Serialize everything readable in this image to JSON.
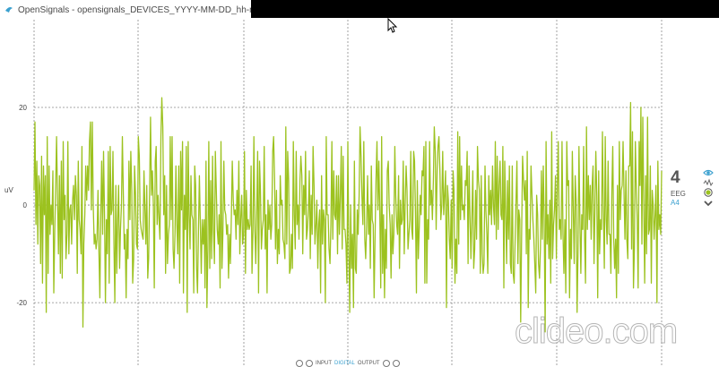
{
  "window": {
    "title": "OpenSignals - opensignals_DEVICES_YYYY-MM-DD_hh-mm-ss*"
  },
  "chart_data": {
    "type": "line",
    "ylabel": "uV",
    "y_ticks": [
      "20",
      "0",
      "-20"
    ],
    "ylim": [
      -33,
      42
    ],
    "grid": true,
    "series": [
      {
        "color": "#9cc21f",
        "values": [
          3,
          17,
          -4,
          9,
          -8,
          6,
          4,
          -12,
          10,
          -16,
          8,
          -2,
          6,
          -22,
          14,
          -14,
          8,
          -6,
          0,
          -4,
          7,
          -18,
          -5,
          4,
          14,
          1,
          -10,
          6,
          -14,
          9,
          -15,
          13,
          -3,
          2,
          -11,
          -6,
          13,
          -10,
          -1,
          0,
          -8,
          1,
          4,
          -3,
          6,
          2,
          -14,
          9,
          -3,
          -5,
          -10,
          12,
          -25,
          -8,
          -2,
          8,
          1,
          8,
          3,
          13,
          17,
          -1,
          17,
          0,
          -8,
          -6,
          -9,
          -7,
          3,
          -9,
          -19,
          -2,
          9,
          -6,
          11,
          -2,
          -20,
          -3,
          -10,
          11,
          -16,
          12,
          -2,
          -1,
          11,
          -8,
          -20,
          4,
          -14,
          -3,
          4,
          -13,
          -5,
          0,
          14,
          2,
          -9,
          -6,
          -19,
          -5,
          -11,
          9,
          -3,
          11,
          3,
          -16,
          -11,
          8,
          2,
          -8,
          -9,
          14,
          10,
          -3,
          -5,
          -6,
          -7,
          7,
          -1,
          -8,
          4,
          -15,
          -11,
          3,
          18,
          2,
          7,
          0,
          -17,
          9,
          12,
          -4,
          2,
          -3,
          -7,
          14,
          22,
          16,
          -2,
          6,
          -14,
          4,
          -12,
          -6,
          -4,
          14,
          -3,
          14,
          -9,
          -13,
          -6,
          8,
          -4,
          -10,
          8,
          -16,
          11,
          -1,
          13,
          -18,
          2,
          -5,
          12,
          -22,
          13,
          -2,
          -9,
          6,
          -2,
          -3,
          -18,
          8,
          4,
          -13,
          -18,
          -5,
          6,
          -4,
          -14,
          -3,
          -8,
          -3,
          -17,
          9,
          -21,
          -9,
          13,
          -13,
          5,
          -11,
          10,
          -5,
          -12,
          11,
          3,
          -5,
          -8,
          -2,
          -17,
          13,
          -13,
          -6,
          9,
          -1,
          -2,
          -6,
          -4,
          -15,
          -6,
          -12,
          -2,
          9,
          1,
          -2,
          -1,
          -7,
          3,
          -4,
          9,
          -10,
          -3,
          2,
          -8,
          -6,
          11,
          -14,
          3,
          -5,
          -3,
          -5,
          -4,
          8,
          -14,
          -5,
          14,
          -5,
          -12,
          -1,
          11,
          -18,
          9,
          3,
          -9,
          -5,
          -3,
          12,
          -9,
          -2,
          -18,
          1,
          -5,
          0,
          -7,
          -4,
          11,
          14,
          5,
          -9,
          3,
          -12,
          -5,
          -10,
          6,
          0,
          1,
          -7,
          -8,
          -11,
          16,
          -8,
          11,
          5,
          -14,
          -13,
          -6,
          -13,
          13,
          -2,
          -9,
          11,
          -4,
          0,
          -7,
          5,
          10,
          6,
          -10,
          4,
          -2,
          11,
          -7,
          -5,
          -1,
          7,
          -11,
          2,
          -6,
          12,
          4,
          -8,
          -4,
          1,
          -13,
          -4,
          -1,
          -18,
          6,
          -8,
          -1,
          -3,
          -20,
          14,
          -2,
          -2,
          -9,
          -12,
          -4,
          13,
          -7,
          7,
          -2,
          -3,
          6,
          -10,
          6,
          -6,
          2,
          12,
          -9,
          10,
          -5,
          -5,
          -8,
          -16,
          13,
          -8,
          -22,
          0,
          -13,
          -6,
          -21,
          9,
          -13,
          -14,
          -1,
          -6,
          2,
          16,
          10,
          2,
          -4,
          13,
          -7,
          -11,
          -4,
          6,
          -6,
          0,
          -13,
          8,
          -3,
          -4,
          -19,
          -6,
          5,
          13,
          -1,
          9,
          -1,
          -17,
          14,
          -14,
          -2,
          -19,
          -5,
          -13,
          7,
          9,
          0,
          -4,
          -15,
          -2,
          -10,
          -6,
          12,
          2,
          -4,
          -6,
          6,
          -13,
          1,
          -4,
          -3,
          9,
          -10,
          0,
          8,
          3,
          -9,
          -6,
          -3,
          11,
          -5,
          -7,
          11,
          9,
          -1,
          -18,
          5,
          -11,
          -5,
          2,
          -2,
          7,
          6,
          12,
          -16,
          13,
          -16,
          -3,
          -7,
          13,
          0,
          3,
          -3,
          5,
          16,
          11,
          -5,
          7,
          12,
          14,
          7,
          -3,
          0,
          11,
          -2,
          2,
          7,
          -21,
          4,
          1,
          -7,
          -11,
          1,
          -13,
          7,
          3,
          -16,
          -7,
          -14,
          15,
          -8,
          14,
          -3,
          8,
          -1,
          0,
          -3,
          5,
          4,
          11,
          -12,
          8,
          -2,
          -11,
          -3,
          7,
          -13,
          -9,
          3,
          -7,
          12,
          5,
          3,
          -14,
          6,
          -10,
          -14,
          -12,
          8,
          -1,
          -6,
          -14,
          6,
          -2,
          3,
          -4,
          8,
          0,
          -4,
          13,
          -7,
          10,
          -5,
          4,
          9,
          -2,
          -3,
          12,
          -17,
          9,
          -1,
          -12,
          5,
          -7,
          8,
          -12,
          -14,
          8,
          -14,
          -16,
          -8,
          1,
          9,
          -12,
          -1,
          -3,
          -24,
          -5,
          10,
          5,
          1,
          5,
          -10,
          11,
          -21,
          -5,
          -7,
          8,
          2,
          -3,
          -7,
          -12,
          -18,
          2,
          -2,
          -12,
          -15,
          -9,
          7,
          -7,
          8,
          -3,
          -26,
          13,
          -8,
          -2,
          -11,
          1,
          -16,
          15,
          -11,
          -4,
          -1,
          6,
          -11,
          4,
          13,
          -5,
          -3,
          -7,
          13,
          -6,
          -14,
          -3,
          -18,
          13,
          4,
          5,
          -19,
          -5,
          -11,
          11,
          -1,
          -12,
          6,
          1,
          -22,
          -10,
          12,
          -3,
          -14,
          -2,
          -5,
          12,
          -7,
          -16,
          16,
          -5,
          6,
          -3,
          4,
          -7,
          4,
          8,
          -12,
          -1,
          11,
          2,
          -19,
          7,
          -10,
          -3,
          -5,
          15,
          -1,
          -13,
          14,
          -3,
          -8,
          9,
          -6,
          -6,
          -14,
          3,
          12,
          -7,
          -13,
          -7,
          -19,
          4,
          -14,
          13,
          -3,
          3,
          4,
          13,
          2,
          -7,
          7,
          -7,
          -11,
          8,
          8,
          21,
          -9,
          15,
          -17,
          -9,
          13,
          4,
          -3,
          -17,
          13,
          4,
          20,
          -8,
          18,
          0,
          -16,
          6,
          -10,
          18,
          -6,
          -5,
          8,
          -16,
          3,
          0,
          -7,
          -2,
          4,
          -20,
          9,
          -5,
          -2,
          -6,
          7
        ]
      }
    ]
  },
  "channel_panel": {
    "number": "4",
    "type": "EEG",
    "port": "A4",
    "icons": [
      "eye-icon",
      "waveform-icon",
      "target-icon",
      "chevron-down-icon"
    ]
  },
  "bottom_bar": {
    "input": "INPUT",
    "digital": "DIGITAL",
    "output": "OUTPUT"
  },
  "watermark": "clideo.com",
  "colors": {
    "signal": "#9cc21f",
    "accent": "#3aa0cf",
    "grid": "#8a8a8a"
  }
}
